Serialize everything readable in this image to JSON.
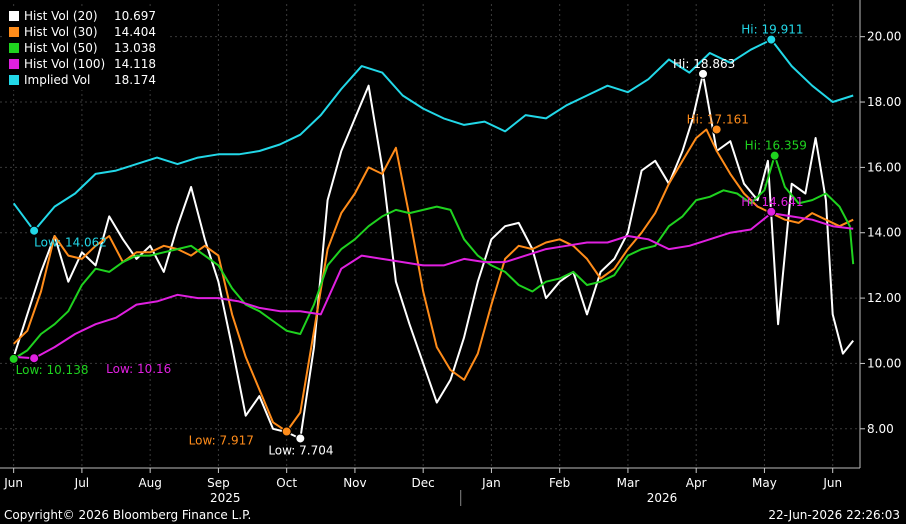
{
  "chart_data": {
    "type": "line",
    "title": "",
    "xlabel": "",
    "ylabel": "",
    "ylim": [
      6.8,
      21
    ],
    "grid": true,
    "legend_placement": "top-left",
    "y_ticks": [
      8,
      10,
      12,
      14,
      16,
      18,
      20
    ],
    "y_tick_labels": [
      "8.00",
      "10.00",
      "12.00",
      "14.00",
      "16.00",
      "18.00",
      "20.00"
    ],
    "x_ticks": [
      "Jun",
      "Jul",
      "Aug",
      "Sep",
      "Oct",
      "Nov",
      "Dec",
      "Jan",
      "Feb",
      "Mar",
      "Apr",
      "May",
      "Jun"
    ],
    "x_tick_positions": [
      0,
      1,
      2,
      3,
      4,
      5,
      6,
      7,
      8,
      9,
      10,
      11,
      12
    ],
    "year_labels": [
      {
        "label": "2025",
        "position": 3.1
      },
      {
        "label": "2026",
        "position": 9.5
      }
    ],
    "year_divider": 6.55,
    "x_range": [
      -0.2,
      12.4
    ],
    "series": [
      {
        "name": "Hist Vol (20)",
        "color": "#ffffff",
        "last": "10.697",
        "x": [
          0,
          0.2,
          0.4,
          0.6,
          0.8,
          1.0,
          1.2,
          1.4,
          1.6,
          1.8,
          2.0,
          2.2,
          2.4,
          2.6,
          2.8,
          3.0,
          3.2,
          3.4,
          3.6,
          3.8,
          4.0,
          4.2,
          4.4,
          4.6,
          4.8,
          5.0,
          5.2,
          5.4,
          5.6,
          5.8,
          6.0,
          6.2,
          6.4,
          6.6,
          6.8,
          7.0,
          7.2,
          7.4,
          7.6,
          7.8,
          8.0,
          8.2,
          8.4,
          8.6,
          8.8,
          9.0,
          9.2,
          9.4,
          9.6,
          9.8,
          9.95,
          10.1,
          10.3,
          10.5,
          10.7,
          10.9,
          11.05,
          11.2,
          11.4,
          11.6,
          11.75,
          11.9,
          12.0,
          12.15,
          12.3
        ],
        "y": [
          10.2,
          11.5,
          12.8,
          13.9,
          12.5,
          13.4,
          13.0,
          14.5,
          13.8,
          13.2,
          13.6,
          12.8,
          14.2,
          15.4,
          13.8,
          12.5,
          10.5,
          8.4,
          9.0,
          8.0,
          7.9,
          7.7,
          10.5,
          15.0,
          16.5,
          17.5,
          18.5,
          16.0,
          12.5,
          11.2,
          10.0,
          8.8,
          9.5,
          10.8,
          12.5,
          13.8,
          14.2,
          14.3,
          13.5,
          12.0,
          12.5,
          12.8,
          11.5,
          12.8,
          13.2,
          14.0,
          15.9,
          16.2,
          15.5,
          16.5,
          17.5,
          18.86,
          16.5,
          16.8,
          15.5,
          15.0,
          16.2,
          11.2,
          15.5,
          15.2,
          16.9,
          15.0,
          11.5,
          10.3,
          10.7
        ]
      },
      {
        "name": "Hist Vol (30)",
        "color": "#ff8c1a",
        "last": "14.404",
        "x": [
          0,
          0.2,
          0.4,
          0.6,
          0.8,
          1.0,
          1.2,
          1.4,
          1.6,
          1.8,
          2.0,
          2.2,
          2.4,
          2.6,
          2.8,
          3.0,
          3.2,
          3.4,
          3.6,
          3.8,
          4.0,
          4.2,
          4.4,
          4.6,
          4.8,
          5.0,
          5.2,
          5.4,
          5.6,
          5.8,
          6.0,
          6.2,
          6.4,
          6.6,
          6.8,
          7.0,
          7.2,
          7.4,
          7.6,
          7.8,
          8.0,
          8.2,
          8.4,
          8.6,
          8.8,
          9.0,
          9.2,
          9.4,
          9.6,
          9.8,
          10.0,
          10.15,
          10.3,
          10.5,
          10.7,
          10.9,
          11.1,
          11.3,
          11.5,
          11.7,
          11.9,
          12.1,
          12.3
        ],
        "y": [
          10.6,
          11.0,
          12.2,
          13.9,
          13.3,
          13.2,
          13.6,
          13.9,
          13.1,
          13.4,
          13.4,
          13.6,
          13.5,
          13.3,
          13.6,
          13.3,
          11.5,
          10.2,
          9.2,
          8.2,
          7.92,
          8.5,
          11.0,
          13.5,
          14.6,
          15.2,
          16.0,
          15.8,
          16.6,
          14.5,
          12.2,
          10.5,
          9.8,
          9.5,
          10.3,
          11.8,
          13.2,
          13.6,
          13.5,
          13.7,
          13.8,
          13.6,
          13.2,
          12.6,
          12.9,
          13.5,
          14.0,
          14.6,
          15.5,
          16.2,
          16.9,
          17.16,
          16.5,
          15.8,
          15.2,
          14.8,
          14.6,
          14.4,
          14.3,
          14.6,
          14.4,
          14.2,
          14.4
        ]
      },
      {
        "name": "Hist Vol (50)",
        "color": "#1fd21f",
        "last": "13.038",
        "x": [
          0,
          0.2,
          0.4,
          0.6,
          0.8,
          1.0,
          1.2,
          1.4,
          1.6,
          1.8,
          2.0,
          2.2,
          2.4,
          2.6,
          2.8,
          3.0,
          3.2,
          3.4,
          3.6,
          3.8,
          4.0,
          4.2,
          4.4,
          4.6,
          4.8,
          5.0,
          5.2,
          5.4,
          5.6,
          5.8,
          6.0,
          6.2,
          6.4,
          6.6,
          6.8,
          7.0,
          7.2,
          7.4,
          7.6,
          7.8,
          8.0,
          8.2,
          8.4,
          8.6,
          8.8,
          9.0,
          9.2,
          9.4,
          9.6,
          9.8,
          10.0,
          10.2,
          10.4,
          10.6,
          10.8,
          11.0,
          11.15,
          11.3,
          11.5,
          11.7,
          11.9,
          12.1,
          12.25,
          12.3
        ],
        "y": [
          10.14,
          10.4,
          10.9,
          11.2,
          11.6,
          12.4,
          12.9,
          12.8,
          13.1,
          13.3,
          13.3,
          13.4,
          13.5,
          13.6,
          13.3,
          13.0,
          12.3,
          11.8,
          11.6,
          11.3,
          11.0,
          10.9,
          11.8,
          13.0,
          13.5,
          13.8,
          14.2,
          14.5,
          14.7,
          14.6,
          14.7,
          14.8,
          14.7,
          13.8,
          13.3,
          13.0,
          12.8,
          12.4,
          12.2,
          12.5,
          12.6,
          12.8,
          12.4,
          12.5,
          12.7,
          13.3,
          13.5,
          13.6,
          14.2,
          14.5,
          15.0,
          15.1,
          15.3,
          15.2,
          14.9,
          15.3,
          16.36,
          15.4,
          14.9,
          15.0,
          15.2,
          14.8,
          14.2,
          13.04
        ]
      },
      {
        "name": "Hist Vol (100)",
        "color": "#e020e0",
        "last": "14.118",
        "x": [
          0,
          0.3,
          0.6,
          0.9,
          1.2,
          1.5,
          1.8,
          2.1,
          2.4,
          2.7,
          3.0,
          3.3,
          3.6,
          3.9,
          4.2,
          4.5,
          4.8,
          5.1,
          5.4,
          5.7,
          6.0,
          6.3,
          6.6,
          6.9,
          7.2,
          7.5,
          7.8,
          8.1,
          8.4,
          8.7,
          9.0,
          9.3,
          9.6,
          9.9,
          10.2,
          10.5,
          10.8,
          11.1,
          11.4,
          11.7,
          12.0,
          12.3
        ],
        "y": [
          10.2,
          10.16,
          10.5,
          10.9,
          11.2,
          11.4,
          11.8,
          11.9,
          12.1,
          12.0,
          12.0,
          11.9,
          11.7,
          11.6,
          11.6,
          11.5,
          12.9,
          13.3,
          13.2,
          13.1,
          13.0,
          13.0,
          13.2,
          13.1,
          13.1,
          13.3,
          13.5,
          13.6,
          13.7,
          13.7,
          13.9,
          13.8,
          13.5,
          13.6,
          13.8,
          14.0,
          14.1,
          14.6,
          14.5,
          14.4,
          14.2,
          14.12
        ]
      },
      {
        "name": "Implied Vol",
        "color": "#22d8e8",
        "last": "18.174",
        "x": [
          0,
          0.3,
          0.6,
          0.9,
          1.2,
          1.5,
          1.8,
          2.1,
          2.4,
          2.7,
          3.0,
          3.3,
          3.6,
          3.9,
          4.2,
          4.5,
          4.8,
          5.1,
          5.4,
          5.7,
          6.0,
          6.3,
          6.6,
          6.9,
          7.2,
          7.5,
          7.8,
          8.1,
          8.4,
          8.7,
          9.0,
          9.3,
          9.6,
          9.9,
          10.2,
          10.5,
          10.8,
          11.1,
          11.4,
          11.7,
          12.0,
          12.3
        ],
        "y": [
          14.9,
          14.06,
          14.8,
          15.2,
          15.8,
          15.9,
          16.1,
          16.3,
          16.1,
          16.3,
          16.4,
          16.4,
          16.5,
          16.7,
          17.0,
          17.6,
          18.4,
          19.1,
          18.9,
          18.2,
          17.8,
          17.5,
          17.3,
          17.4,
          17.1,
          17.6,
          17.5,
          17.9,
          18.2,
          18.5,
          18.3,
          18.7,
          19.3,
          18.9,
          19.5,
          19.2,
          19.6,
          19.91,
          19.1,
          18.5,
          18.0,
          18.2
        ]
      }
    ],
    "annotations": [
      {
        "series": 0,
        "kind": "Hi",
        "text": "Hi: 18.863",
        "x": 10.1,
        "y": 18.863
      },
      {
        "series": 0,
        "kind": "Low",
        "text": "Low: 7.704",
        "x": 4.2,
        "y": 7.704
      },
      {
        "series": 1,
        "kind": "Hi",
        "text": "Hi: 17.161",
        "x": 10.3,
        "y": 17.161
      },
      {
        "series": 1,
        "kind": "Low",
        "text": "Low: 7.917",
        "x": 4.0,
        "y": 7.917
      },
      {
        "series": 2,
        "kind": "Hi",
        "text": "Hi: 16.359",
        "x": 11.15,
        "y": 16.359
      },
      {
        "series": 2,
        "kind": "Low",
        "text": "Low: 10.138",
        "x": 0,
        "y": 10.138
      },
      {
        "series": 3,
        "kind": "Hi",
        "text": "Hi: 14.641",
        "x": 11.1,
        "y": 14.641
      },
      {
        "series": 3,
        "kind": "Low",
        "text": "Low: 10.16",
        "x": 0.3,
        "y": 10.16
      },
      {
        "series": 4,
        "kind": "Hi",
        "text": "Hi: 19.911",
        "x": 11.1,
        "y": 19.911
      },
      {
        "series": 4,
        "kind": "Low",
        "text": "Low: 14.062",
        "x": 0.3,
        "y": 14.062
      }
    ]
  },
  "footer": {
    "copyright": "Copyright© 2026 Bloomberg Finance L.P.",
    "timestamp": "22-Jun-2026 22:26:03"
  }
}
